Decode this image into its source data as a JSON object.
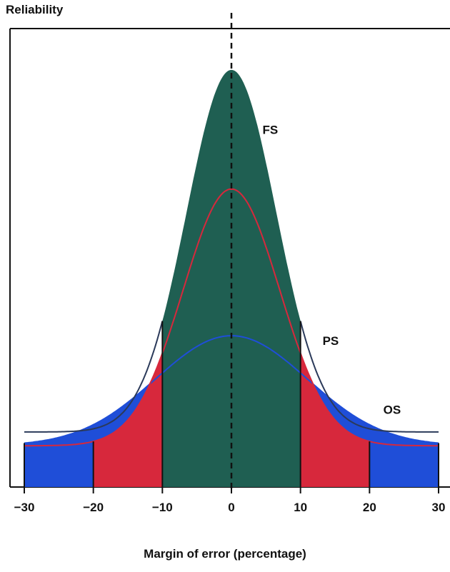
{
  "chart_data": {
    "type": "area",
    "ylabel": "Reliability",
    "xlabel": "Margin of error (percentage)",
    "xlim": [
      -30,
      30
    ],
    "ylim": [
      0,
      1
    ],
    "x_ticks": [
      -30,
      -20,
      -10,
      0,
      10,
      20,
      30
    ],
    "x_tick_labels": [
      "−30",
      "−20",
      "−10",
      "0",
      "10",
      "20",
      "30"
    ],
    "grid": false,
    "center_line": {
      "x": 0,
      "style": "dashed"
    },
    "series": [
      {
        "name": "FS",
        "color": "#1f5f52",
        "peak": 0.91,
        "spread": 6.5,
        "baseline": 0.12,
        "region": [
          -10,
          10
        ]
      },
      {
        "name": "PS",
        "color": "#d7283c",
        "peak": 0.65,
        "spread": 7.0,
        "baseline": 0.09,
        "region": [
          -20,
          20
        ]
      },
      {
        "name": "OS",
        "color": "#1f4ed8",
        "peak": 0.33,
        "spread": 11.0,
        "baseline": 0.09,
        "region": [
          -30,
          30
        ]
      }
    ],
    "annotations": [
      "FS",
      "PS",
      "OS"
    ]
  }
}
